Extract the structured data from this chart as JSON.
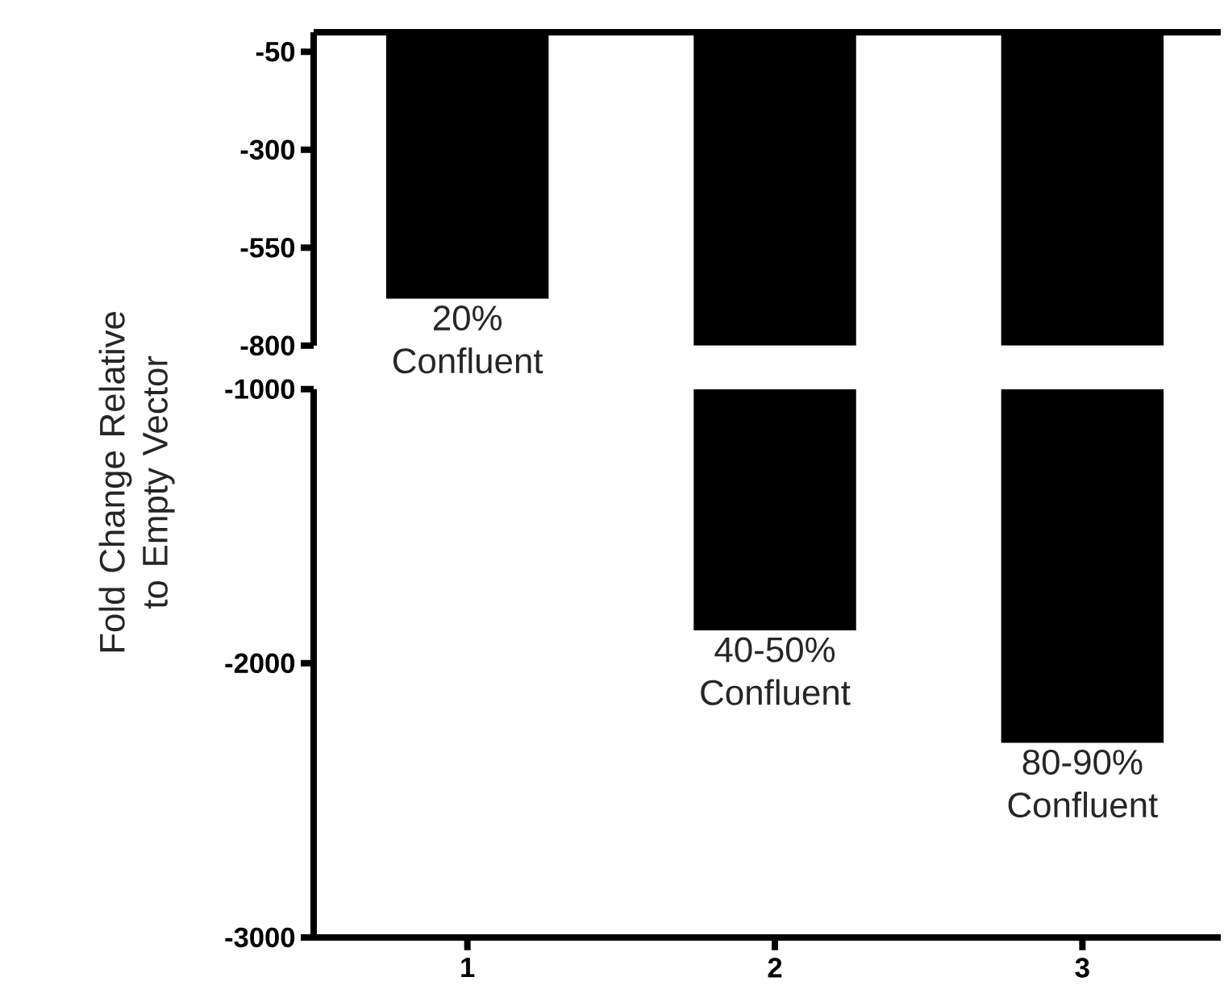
{
  "chart_data": [
    {
      "type": "bar",
      "categories": [
        "1",
        "2",
        "3"
      ],
      "values": [
        -680,
        -800,
        -800
      ],
      "color": "#000000",
      "ylim": [
        -800,
        0
      ],
      "yticks": [
        -800,
        -550,
        -300,
        -50
      ],
      "tick_labels": "y",
      "annotations": [
        {
          "text": "20% Confluent",
          "x": "1",
          "y": -680
        }
      ]
    },
    {
      "type": "bar",
      "categories": [
        "1",
        "2",
        "3"
      ],
      "values": [
        null,
        -1880,
        -2290
      ],
      "color": "#000000",
      "ylim": [
        -3000,
        -1000
      ],
      "yticks": [
        -3000,
        -2000,
        -1000
      ],
      "ylabel": "Fold Change Relative to Empty Vector",
      "annotations": [
        {
          "text": "40-50% Confluent",
          "x": "2",
          "y": -1880
        },
        {
          "text": "80-90% Confluent",
          "x": "3",
          "y": -2290
        }
      ]
    }
  ]
}
